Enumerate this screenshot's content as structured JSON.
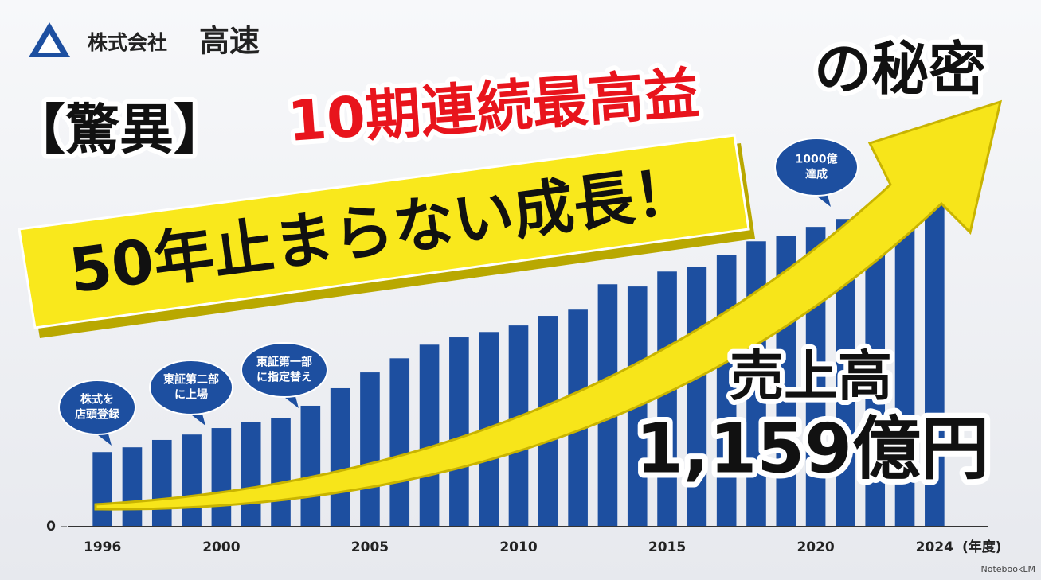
{
  "chart_data": {
    "type": "bar",
    "logo": {
      "prefix": "株式会社",
      "name": "高速"
    },
    "title_prefix": "【驚異】",
    "title": "10期連続最高益",
    "title_suffix": "の秘密",
    "subtitle": "50年止まらない成長！",
    "highlight_label": "売上高",
    "highlight_value": "1,159億円",
    "xlabel": "(年度)",
    "watermark": "NotebookLM",
    "categories": [
      "1996",
      null,
      null,
      null,
      "2000",
      null,
      null,
      null,
      null,
      "2005",
      null,
      null,
      null,
      null,
      "2010",
      null,
      null,
      null,
      null,
      "2015",
      null,
      null,
      null,
      null,
      "2020",
      null,
      null,
      null,
      "2024"
    ],
    "values": [
      264,
      281,
      307,
      326,
      349,
      369,
      383,
      428,
      490,
      546,
      596,
      644,
      670,
      689,
      712,
      746,
      768,
      858,
      850,
      903,
      920,
      962,
      1010,
      1030,
      1061,
      1089,
      1109,
      1126,
      1159
    ],
    "color": "#1d4fa0",
    "ylim": [
      0,
      1450
    ],
    "yticks": [
      0
    ],
    "annotations": [
      {
        "lines": [
          "株式を",
          "店頭登録"
        ]
      },
      {
        "lines": [
          "東証第二部",
          "に上場"
        ]
      },
      {
        "lines": [
          "東証第一部",
          "に指定替え"
        ]
      },
      {
        "lines": [
          "1000億",
          "達成"
        ]
      }
    ]
  }
}
